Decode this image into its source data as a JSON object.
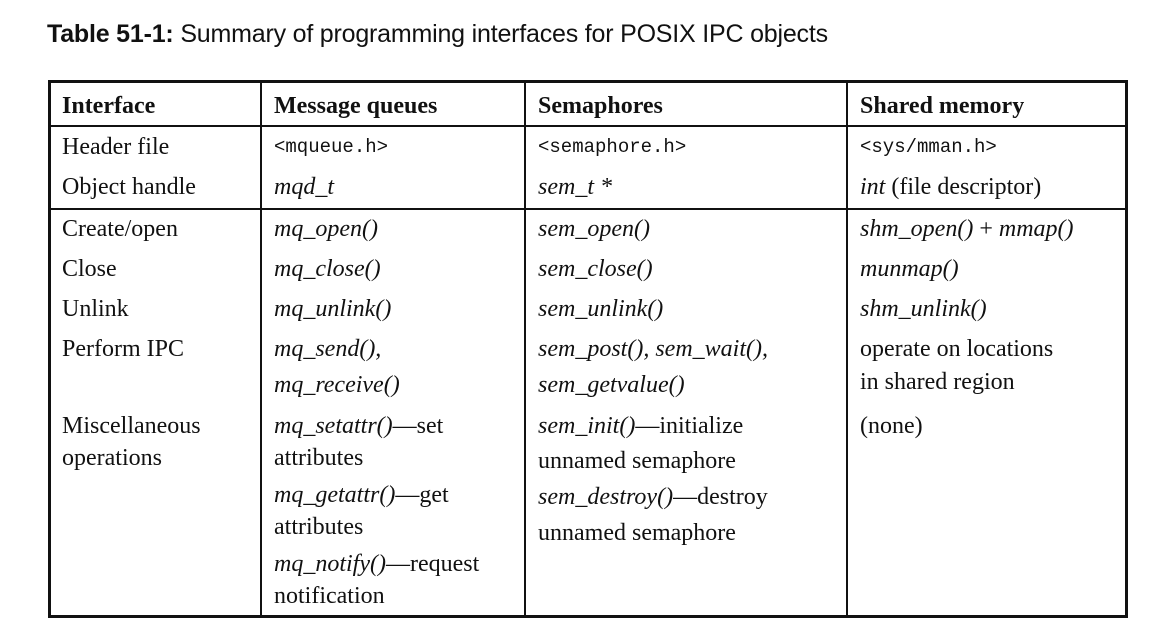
{
  "caption": {
    "label": "Table 51-1:",
    "text": "Summary of programming interfaces for POSIX IPC objects"
  },
  "headers": [
    "Interface",
    "Message queues",
    "Semaphores",
    "Shared memory"
  ],
  "rows": {
    "header_file": {
      "label": "Header file",
      "mq": "<mqueue.h>",
      "sem": "<semaphore.h>",
      "shm": "<sys/mman.h>"
    },
    "object_handle": {
      "label": "Object handle",
      "mq": "mqd_t",
      "sem": "sem_t *",
      "shm_type": "int",
      "shm_note": "(file descriptor)"
    },
    "create_open": {
      "label": "Create/open",
      "mq": "mq_open()",
      "sem": "sem_open()",
      "shm_a": "shm_open()",
      "shm_plus": "+",
      "shm_b": "mmap()"
    },
    "close": {
      "label": "Close",
      "mq": "mq_close()",
      "sem": "sem_close()",
      "shm": "munmap()"
    },
    "unlink": {
      "label": "Unlink",
      "mq": "mq_unlink()",
      "sem": "sem_unlink()",
      "shm": "shm_unlink()"
    },
    "perform_ipc": {
      "label": "Perform IPC",
      "mq_1": "mq_send(),",
      "mq_2": "mq_receive()",
      "sem_1a": "sem_post(),",
      "sem_1b": "sem_wait(),",
      "sem_2": "sem_getvalue()",
      "shm_1": "operate on locations",
      "shm_2": "in shared region"
    },
    "misc": {
      "label_1": "Miscellaneous",
      "label_2": "operations",
      "mq_1_fn": "mq_setattr()",
      "mq_1_rest": "—set",
      "mq_2": "attributes",
      "mq_3_fn": "mq_getattr()",
      "mq_3_rest": "—get",
      "mq_4": "attributes",
      "mq_5_fn": "mq_notify()",
      "mq_5_rest": "—request",
      "mq_6": "notification",
      "sem_1_fn": "sem_init()",
      "sem_1_rest": "—initialize",
      "sem_2": "unnamed semaphore",
      "sem_3_fn": "sem_destroy()",
      "sem_3_rest": "—destroy",
      "sem_4": "unnamed semaphore",
      "shm": "(none)"
    }
  }
}
